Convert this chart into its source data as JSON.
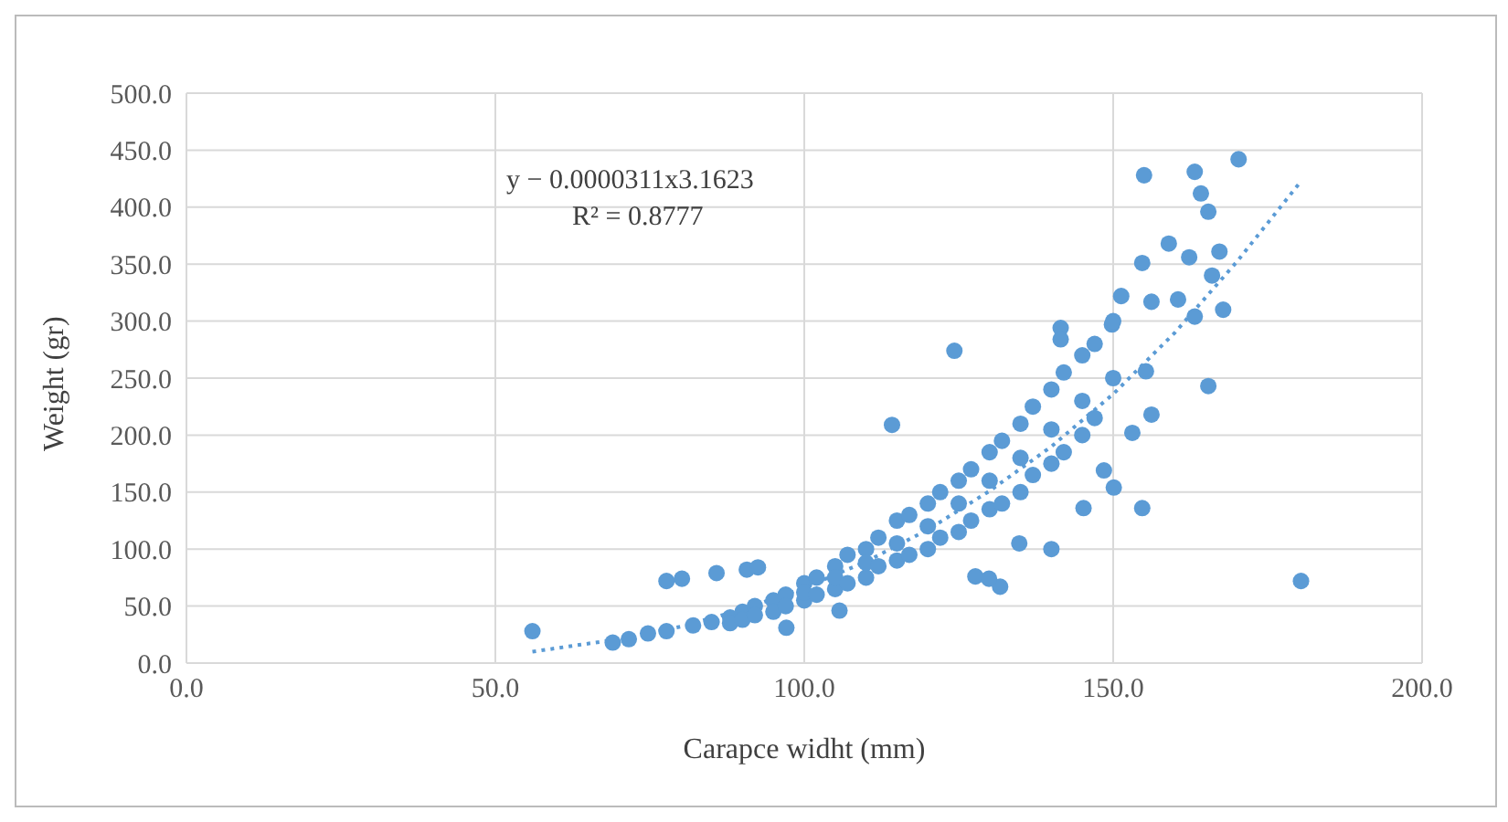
{
  "chart_data": {
    "type": "scatter",
    "xlabel": "Carapce widht (mm)",
    "ylabel": "Weight (gr)",
    "annotations": [
      "y − 0.0000311x3.1623",
      "R² = 0.8777"
    ],
    "xlim": [
      0,
      200
    ],
    "xticks": [
      {
        "value": 0,
        "label": "0.0"
      },
      {
        "value": 50,
        "label": "50.0"
      },
      {
        "value": 100,
        "label": "100.0"
      },
      {
        "value": 150,
        "label": "150.0"
      },
      {
        "value": 200,
        "label": "200.0"
      }
    ],
    "ylim": [
      0,
      500
    ],
    "yticks": [
      {
        "value": 0,
        "label": "0.0"
      },
      {
        "value": 50,
        "label": "50.0"
      },
      {
        "value": 100,
        "label": "100.0"
      },
      {
        "value": 150,
        "label": "150.0"
      },
      {
        "value": 200,
        "label": "200.0"
      },
      {
        "value": 250,
        "label": "250.0"
      },
      {
        "value": 300,
        "label": "300.0"
      },
      {
        "value": 350,
        "label": "350.0"
      },
      {
        "value": 400,
        "label": "400.0"
      },
      {
        "value": 450,
        "label": "450.0"
      },
      {
        "value": 500,
        "label": "500.0"
      }
    ],
    "grid": true,
    "marker": "circle",
    "series": [
      {
        "type": "scatter",
        "color": "#5b9bd5",
        "x": [
          56,
          69,
          71.6,
          74.7,
          77.7,
          77.7,
          80.2,
          85.8,
          90.7,
          92.5,
          97.1,
          105.7,
          170.3,
          155,
          163.2,
          164.2,
          165.4,
          159,
          162.3,
          167.2,
          166,
          167.8,
          163.2,
          154.7,
          151.3,
          156.2,
          160.5,
          149.8,
          141.5,
          141.5,
          124.3,
          155.3,
          165.4,
          156.2,
          153.1,
          114.2,
          148.5,
          150.1,
          145.2,
          154.7,
          140,
          134.8,
          127.7,
          131.7,
          129.9,
          180.4,
          82,
          85,
          88,
          88,
          90,
          90,
          92,
          92,
          95,
          95,
          97,
          97,
          100,
          100,
          100,
          102,
          102,
          105,
          105,
          105,
          107,
          107,
          110,
          110,
          110,
          112,
          112,
          115,
          115,
          115,
          117,
          117,
          120,
          120,
          120,
          122,
          122,
          125,
          125,
          125,
          127,
          127,
          130,
          130,
          130,
          132,
          132,
          135,
          135,
          135,
          137,
          137,
          140,
          140,
          140,
          142,
          142,
          145,
          145,
          145,
          147,
          147,
          150,
          150
        ],
        "values": [
          28,
          18,
          21,
          26,
          28,
          72,
          74,
          79,
          82,
          84,
          31,
          46,
          442,
          428,
          431,
          412,
          396,
          368,
          356,
          361,
          340,
          310,
          304,
          351,
          322,
          317,
          319,
          297,
          294,
          284,
          274,
          256,
          243,
          218,
          202,
          209,
          169,
          154,
          136,
          136,
          100,
          105,
          76,
          67,
          74,
          72,
          33,
          36,
          40,
          35,
          45,
          38,
          50,
          42,
          55,
          45,
          60,
          50,
          70,
          55,
          62,
          75,
          60,
          85,
          65,
          75,
          95,
          70,
          100,
          75,
          88,
          110,
          85,
          125,
          90,
          105,
          130,
          95,
          140,
          100,
          120,
          150,
          110,
          160,
          115,
          140,
          170,
          125,
          185,
          135,
          160,
          195,
          140,
          210,
          150,
          180,
          225,
          165,
          240,
          175,
          205,
          255,
          185,
          270,
          200,
          230,
          280,
          215,
          300,
          250
        ]
      },
      {
        "type": "line",
        "color": "#5b9bd5",
        "line_style": "dotted",
        "marker": "none",
        "x": [
          56,
          70,
          80,
          90,
          100,
          110,
          120,
          130,
          140,
          150,
          160,
          170,
          180
        ],
        "values": [
          10,
          21,
          32,
          47,
          66,
          89,
          117,
          151,
          190,
          236,
          290,
          352,
          420
        ]
      }
    ]
  }
}
